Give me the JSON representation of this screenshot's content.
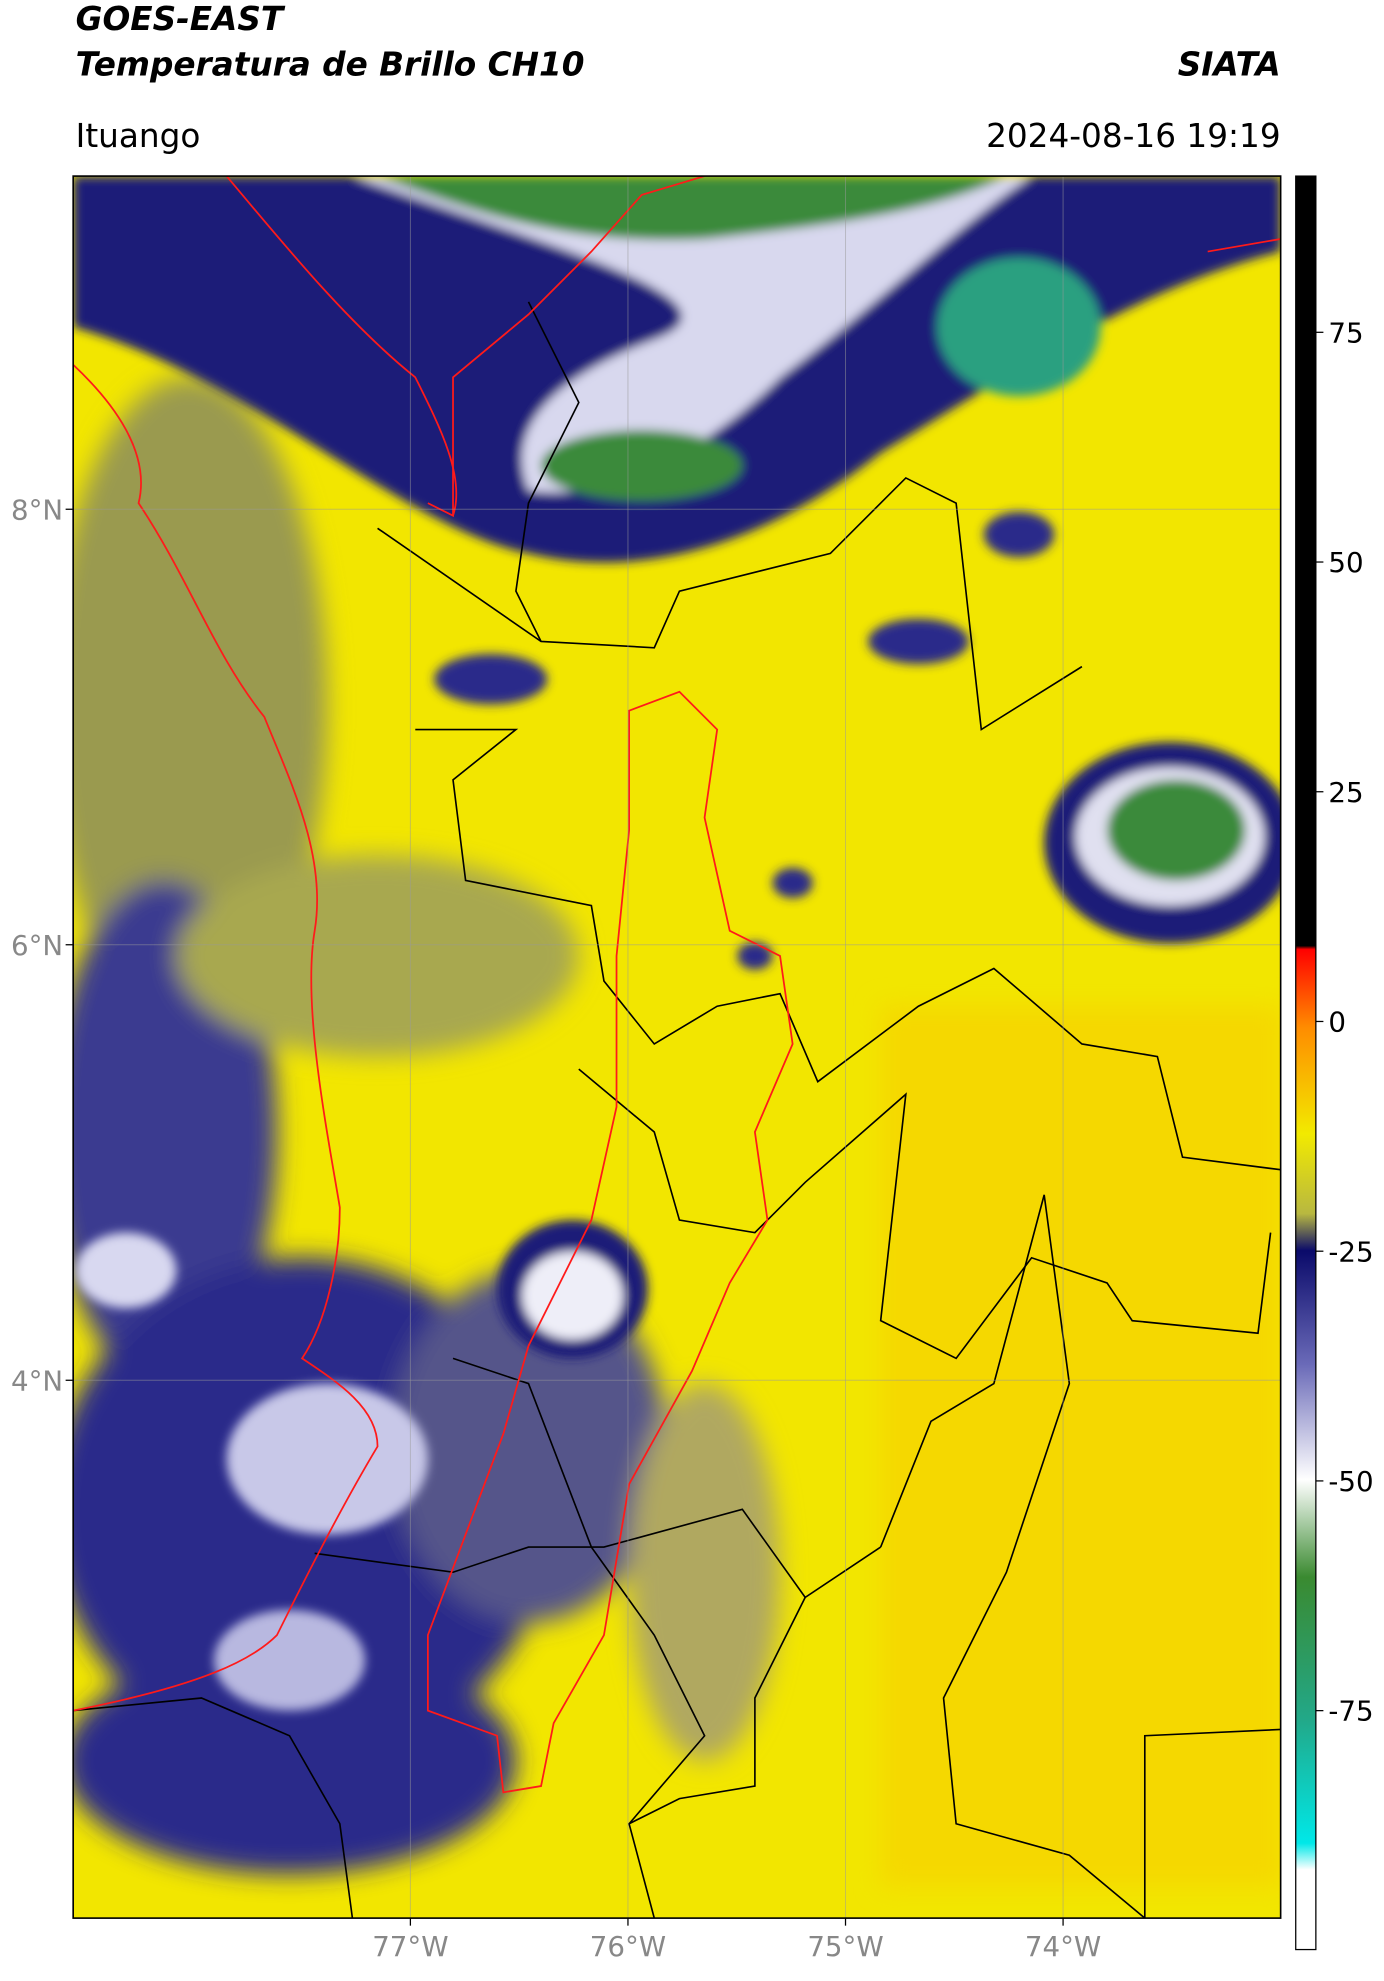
{
  "header": {
    "title": "GOES-EAST",
    "subtitle": "Temperatura de Brillo CH10",
    "source": "SIATA",
    "location": "Ituango",
    "datetime": "2024-08-16 19:19"
  },
  "map": {
    "lat_range": [
      1.53,
      9.53
    ],
    "lon_range": [
      -78.55,
      -73.0
    ],
    "lat_ticks": [
      {
        "value": 8,
        "label": "8°N"
      },
      {
        "value": 6,
        "label": "6°N"
      },
      {
        "value": 4,
        "label": "4°N"
      }
    ],
    "lon_ticks": [
      {
        "value": -77,
        "label": "77°W"
      },
      {
        "value": -76,
        "label": "76°W"
      },
      {
        "value": -75,
        "label": "75°W"
      },
      {
        "value": -74,
        "label": "74°W"
      }
    ]
  },
  "colorbar": {
    "range": [
      -101,
      92
    ],
    "ticks": [
      75,
      50,
      25,
      0,
      -25,
      -50,
      -75
    ]
  }
}
